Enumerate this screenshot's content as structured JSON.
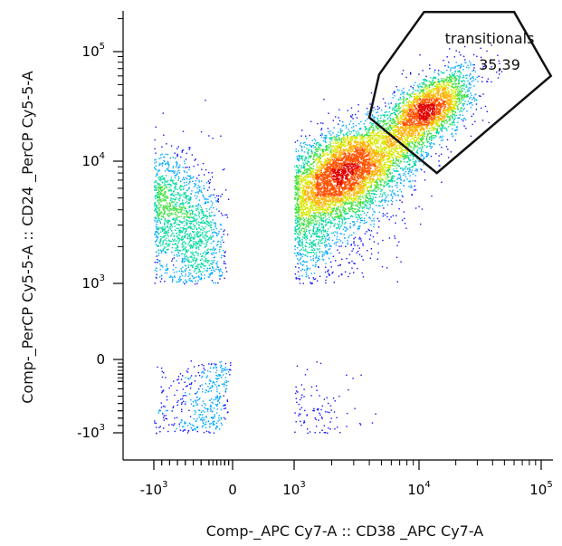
{
  "chart_data": {
    "type": "scatter",
    "subtype": "flow-cytometry-density-dot-plot",
    "xlabel": "Comp-_APC Cy7-A :: CD38 _APC Cy7-A",
    "ylabel": "Comp-_PerCP Cy5-5-A :: CD24 _PerCP Cy5-5-A",
    "scale": "biexponential",
    "xlim": [
      -2000,
      150000
    ],
    "ylim": [
      -2000,
      200000
    ],
    "x_ticks": [
      {
        "value": -1000,
        "base": "-10",
        "exp": "3"
      },
      {
        "value": 0,
        "base": "0",
        "exp": ""
      },
      {
        "value": 1000,
        "base": "10",
        "exp": "3"
      },
      {
        "value": 10000,
        "base": "10",
        "exp": "4"
      },
      {
        "value": 100000,
        "base": "10",
        "exp": "5"
      }
    ],
    "y_ticks": [
      {
        "value": 100000,
        "base": "10",
        "exp": "5"
      },
      {
        "value": 10000,
        "base": "10",
        "exp": "4"
      },
      {
        "value": 1000,
        "base": "10",
        "exp": "3"
      },
      {
        "value": 0,
        "base": "0",
        "exp": ""
      },
      {
        "value": -1000,
        "base": "-10",
        "exp": "3"
      }
    ],
    "density_colors": [
      "#1010ff",
      "#00a8ff",
      "#00d8a0",
      "#40e040",
      "#d8e800",
      "#ffb000",
      "#ff5000",
      "#e00000"
    ],
    "populations": [
      {
        "center": [
          2500,
          8000
        ],
        "spread": [
          0.3,
          0.23
        ],
        "count": 5500,
        "correlation": 0.55
      },
      {
        "center": [
          12000,
          30000
        ],
        "spread": [
          0.18,
          0.18
        ],
        "count": 2500,
        "correlation": 0.6
      },
      {
        "center": [
          900,
          2500
        ],
        "spread": [
          0.35,
          0.35
        ],
        "count": 2200,
        "correlation": 0.3
      },
      {
        "center": [
          350,
          400
        ],
        "spread": [
          0.4,
          0.45
        ],
        "count": 250,
        "correlation": 0.2
      }
    ],
    "gate": {
      "name": "transitionals",
      "percentage": "35,39",
      "polygon": [
        [
          4000,
          25000
        ],
        [
          4800,
          62000
        ],
        [
          11000,
          230000
        ],
        [
          60000,
          230000
        ],
        [
          120000,
          60000
        ],
        [
          14000,
          8000
        ]
      ]
    }
  }
}
